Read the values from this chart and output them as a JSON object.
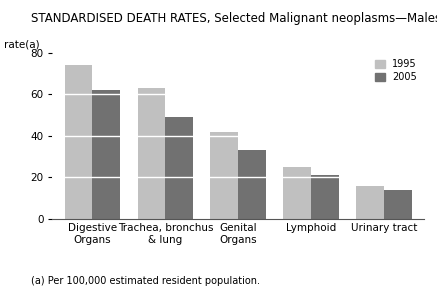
{
  "title": "STANDARDISED DEATH RATES, Selected Malignant neoplasms—Males",
  "ylabel": "rate(a)",
  "ylim": [
    0,
    80
  ],
  "yticks": [
    0,
    20,
    40,
    60,
    80
  ],
  "categories": [
    "Digestive\nOrgans",
    "Trachea, bronchus\n& lung",
    "Genital\nOrgans",
    "Lymphoid",
    "Urinary tract"
  ],
  "values_1995": [
    74,
    63,
    42,
    25,
    16
  ],
  "values_2005": [
    62,
    49,
    33,
    21,
    14
  ],
  "color_1995": "#c0c0c0",
  "color_2005": "#717171",
  "bar_width": 0.38,
  "legend_labels": [
    "1995",
    "2005"
  ],
  "footnote": "(a) Per 100,000 estimated resident population.",
  "title_fontsize": 8.5,
  "tick_fontsize": 7.5,
  "footnote_fontsize": 7,
  "background_color": "#ffffff"
}
